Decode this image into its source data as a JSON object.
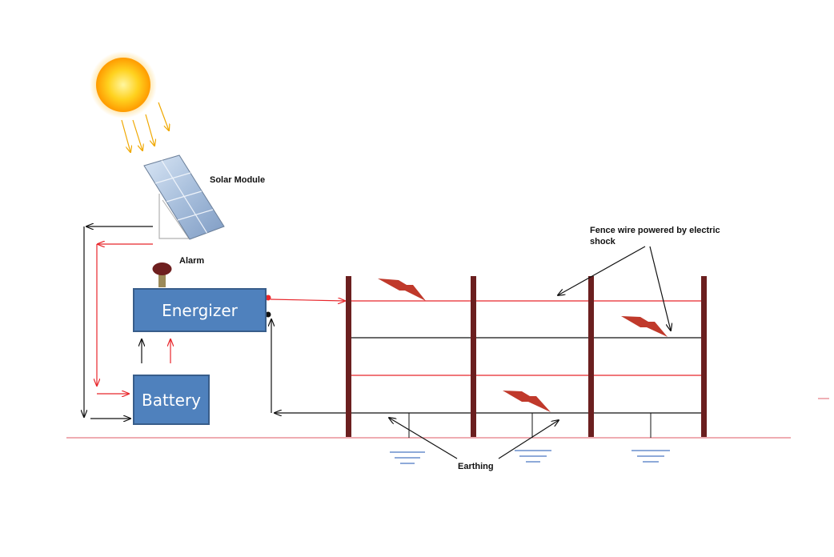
{
  "labels": {
    "solar_module": "Solar Module",
    "alarm": "Alarm",
    "energizer": "Energizer",
    "battery": "Battery",
    "fence_wire": "Fence wire powered by electric shock",
    "earthing": "Earthing"
  },
  "colors": {
    "box_fill": "#4f81bd",
    "box_border": "#385d8a",
    "live_wire": "#e8262b",
    "return_wire": "#111111",
    "post": "#6b1f1f",
    "lightning": "#c0392b",
    "ground_line": "#e57b84",
    "earth_symbol": "#4a78c2",
    "sun_rays": "#f0a800"
  }
}
